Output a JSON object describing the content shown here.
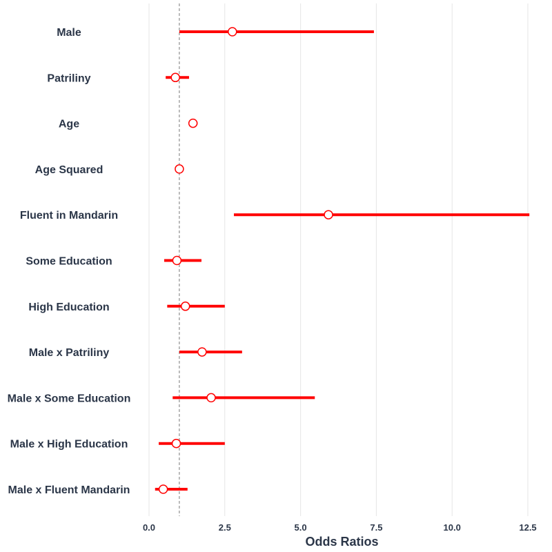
{
  "chart_data": {
    "type": "forest",
    "title": "",
    "xlabel": "Odds Ratios",
    "ylabel": "",
    "xlim": [
      -0.25,
      12.75
    ],
    "xticks": [
      0,
      2.5,
      5,
      7.5,
      10,
      12.5
    ],
    "xtick_labels": [
      "0.0",
      "2.5",
      "5.0",
      "7.5",
      "10.0",
      "12.5"
    ],
    "reference_line": 1.0,
    "grid": "vertical",
    "colors": {
      "interval": "#ff0000",
      "point_fill": "#ffffff",
      "point_stroke": "#ff0000",
      "grid": "#e5e5e5",
      "reference": "#777777",
      "text": "#2b3648"
    },
    "categories": [
      "Male",
      "Patriliny",
      "Age",
      "Age Squared",
      "Fluent in Mandarin",
      "Some Education",
      "High Education",
      "Male x Patriliny",
      "Male x Some Education",
      "Male x High Education",
      "Male x Fluent Mandarin"
    ],
    "estimates": [
      2.75,
      0.87,
      1.45,
      1.0,
      5.92,
      0.92,
      1.2,
      1.75,
      2.05,
      0.9,
      0.47
    ],
    "lower": [
      1.0,
      0.55,
      1.35,
      0.98,
      2.8,
      0.5,
      0.6,
      1.0,
      0.78,
      0.32,
      0.2
    ],
    "upper": [
      7.42,
      1.32,
      1.6,
      1.02,
      12.55,
      1.73,
      2.5,
      3.07,
      5.47,
      2.5,
      1.27
    ]
  }
}
